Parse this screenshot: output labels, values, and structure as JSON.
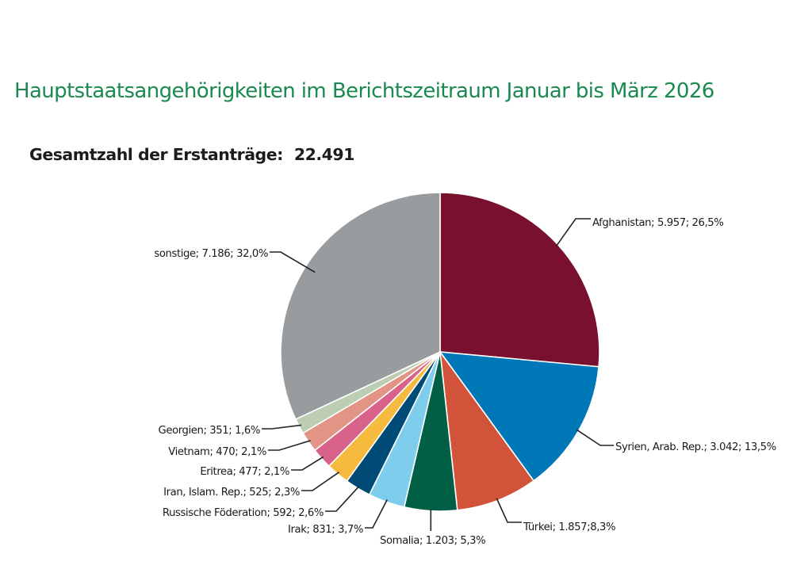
{
  "header": {
    "title": "Hauptstaatsangehörigkeiten im Berichtszeitraum Januar bis März 2026",
    "total_label": "Gesamtzahl der Erstanträge:",
    "total_value": "22.491"
  },
  "chart_data": {
    "type": "pie",
    "title": "Hauptstaatsangehörigkeiten im Berichtszeitraum Januar bis März 2026",
    "subtitle": "Gesamtzahl der Erstanträge: 22.491",
    "total": 22491,
    "start_angle": "12 o'clock",
    "direction": "clockwise",
    "slices": [
      {
        "name": "Afghanistan",
        "value": 5957,
        "percent": 26.5,
        "color": "#78102e",
        "label": "Afghanistan; 5.957; 26,5%"
      },
      {
        "name": "Syrien, Arab. Rep.",
        "value": 3042,
        "percent": 13.5,
        "color": "#0077b6",
        "label": "Syrien, Arab. Rep.; 3.042; 13,5%"
      },
      {
        "name": "Türkei",
        "value": 1857,
        "percent": 8.3,
        "color": "#d0533a",
        "label": "Türkei; 1.857;8,3%"
      },
      {
        "name": "Somalia",
        "value": 1203,
        "percent": 5.3,
        "color": "#005f45",
        "label": "Somalia; 1.203; 5,3%"
      },
      {
        "name": "Irak",
        "value": 831,
        "percent": 3.7,
        "color": "#7fcdec",
        "label": "Irak; 831; 3,7%"
      },
      {
        "name": "Russische Föderation",
        "value": 592,
        "percent": 2.6,
        "color": "#004b76",
        "label": "Russische Föderation; 592; 2,6%"
      },
      {
        "name": "Iran, Islam. Rep.",
        "value": 525,
        "percent": 2.3,
        "color": "#f6bb3e",
        "label": "Iran, Islam. Rep.; 525; 2,3%"
      },
      {
        "name": "Eritrea",
        "value": 477,
        "percent": 2.1,
        "color": "#d9628a",
        "label": "Eritrea; 477; 2,1%"
      },
      {
        "name": "Vietnam",
        "value": 470,
        "percent": 2.1,
        "color": "#e39585",
        "label": "Vietnam; 470; 2,1%"
      },
      {
        "name": "Georgien",
        "value": 351,
        "percent": 1.6,
        "color": "#bccdb2",
        "label": "Georgien; 351; 1,6%"
      },
      {
        "name": "sonstige",
        "value": 7186,
        "percent": 32.0,
        "color": "#989c9e",
        "label": "sonstige; 7.186; 32,0%"
      }
    ]
  }
}
